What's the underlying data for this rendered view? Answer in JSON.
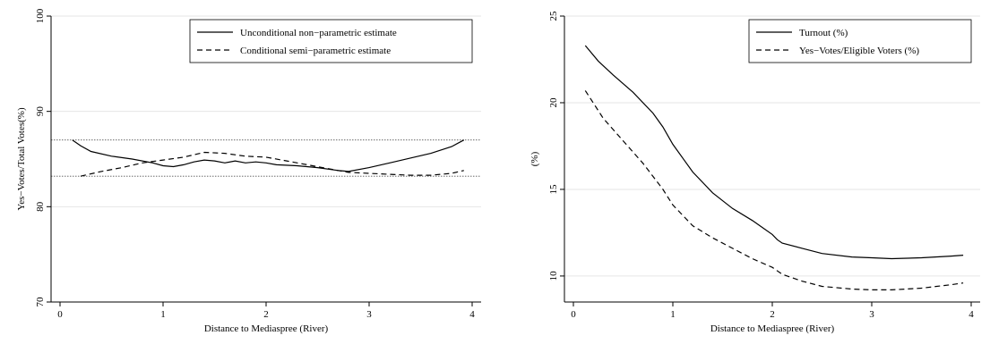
{
  "chart_data": [
    {
      "type": "line",
      "xlabel": "Distance to Mediaspree (River)",
      "ylabel": "Yes−Votes/Total Votes(%)",
      "xlim": [
        0,
        4
      ],
      "ylim": [
        70,
        100
      ],
      "xticks": [
        "0",
        "1",
        "2",
        "3",
        "4"
      ],
      "yticks": [
        "70",
        "80",
        "90",
        "100"
      ],
      "grid": true,
      "legend_position": "top-right",
      "reference_lines_y": [
        87,
        83.2
      ],
      "series": [
        {
          "name": "Unconditional non−parametric estimate",
          "style": "solid",
          "x": [
            0.12,
            0.2,
            0.3,
            0.5,
            0.7,
            0.9,
            1.0,
            1.1,
            1.2,
            1.3,
            1.4,
            1.5,
            1.6,
            1.7,
            1.8,
            1.9,
            2.0,
            2.1,
            2.3,
            2.5,
            2.7,
            2.8,
            3.0,
            3.2,
            3.4,
            3.6,
            3.8,
            3.92
          ],
          "y": [
            87.0,
            86.4,
            85.8,
            85.3,
            85.0,
            84.6,
            84.3,
            84.2,
            84.4,
            84.7,
            84.9,
            84.8,
            84.6,
            84.8,
            84.6,
            84.7,
            84.6,
            84.4,
            84.3,
            84.1,
            83.8,
            83.7,
            84.1,
            84.6,
            85.1,
            85.6,
            86.3,
            87.0
          ]
        },
        {
          "name": "Conditional semi−parametric estimate",
          "style": "dashed",
          "x": [
            0.2,
            0.4,
            0.6,
            0.8,
            1.0,
            1.2,
            1.4,
            1.6,
            1.8,
            2.0,
            2.2,
            2.4,
            2.6,
            2.8,
            3.0,
            3.2,
            3.4,
            3.6,
            3.8,
            3.92
          ],
          "y": [
            83.2,
            83.7,
            84.1,
            84.6,
            84.9,
            85.2,
            85.7,
            85.6,
            85.3,
            85.2,
            84.8,
            84.4,
            84.0,
            83.6,
            83.5,
            83.4,
            83.3,
            83.3,
            83.5,
            83.8
          ]
        }
      ]
    },
    {
      "type": "line",
      "xlabel": "Distance to Mediaspree (River)",
      "ylabel": "(%)",
      "xlim": [
        0,
        4
      ],
      "ylim": [
        8.5,
        25
      ],
      "xticks": [
        "0",
        "1",
        "2",
        "3",
        "4"
      ],
      "yticks": [
        "10",
        "15",
        "20",
        "25"
      ],
      "grid": true,
      "legend_position": "top-right",
      "series": [
        {
          "name": "Turnout (%)",
          "style": "solid",
          "x": [
            0.12,
            0.25,
            0.4,
            0.6,
            0.8,
            0.9,
            1.0,
            1.2,
            1.4,
            1.6,
            1.8,
            2.0,
            2.05,
            2.1,
            2.3,
            2.5,
            2.8,
            3.0,
            3.2,
            3.5,
            3.8,
            3.92
          ],
          "y": [
            23.3,
            22.4,
            21.6,
            20.6,
            19.4,
            18.6,
            17.6,
            16.0,
            14.8,
            13.9,
            13.2,
            12.4,
            12.1,
            11.9,
            11.6,
            11.3,
            11.1,
            11.05,
            11.0,
            11.05,
            11.15,
            11.2
          ]
        },
        {
          "name": "Yes−Votes/Eligible Voters (%)",
          "style": "dashed",
          "x": [
            0.12,
            0.3,
            0.5,
            0.7,
            0.9,
            1.0,
            1.2,
            1.4,
            1.6,
            1.8,
            2.0,
            2.1,
            2.3,
            2.5,
            2.8,
            3.0,
            3.2,
            3.5,
            3.8,
            3.92
          ],
          "y": [
            20.7,
            19.1,
            17.8,
            16.5,
            15.0,
            14.1,
            12.9,
            12.2,
            11.6,
            11.0,
            10.5,
            10.1,
            9.7,
            9.4,
            9.25,
            9.2,
            9.2,
            9.3,
            9.5,
            9.6
          ]
        }
      ]
    }
  ]
}
